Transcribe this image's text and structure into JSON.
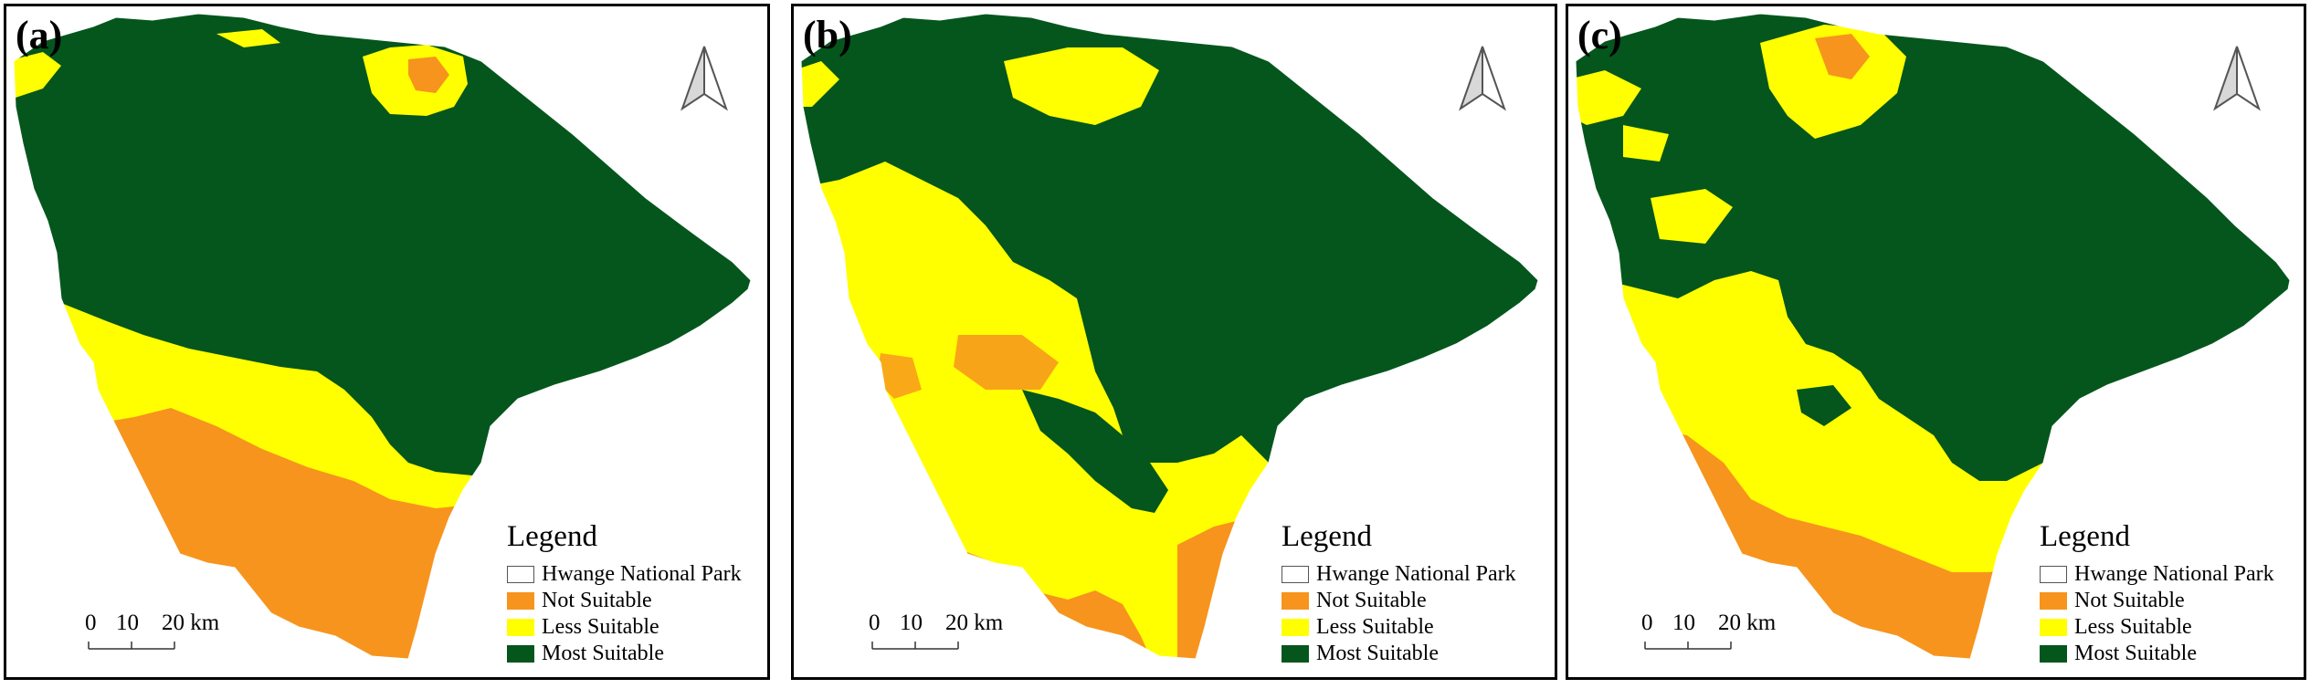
{
  "panels": [
    {
      "id": "a",
      "label": "(a)"
    },
    {
      "id": "b",
      "label": "(b)"
    },
    {
      "id": "c",
      "label": "(c)"
    }
  ],
  "legend": {
    "title": "Legend",
    "items": [
      {
        "label": "Hwange National Park",
        "color": "#ffffff"
      },
      {
        "label": "Not Suitable",
        "color": "#f7941d"
      },
      {
        "label": "Less Suitable",
        "color": "#ffff00"
      },
      {
        "label": "Most Suitable",
        "color": "#04561d"
      }
    ]
  },
  "scale": {
    "labels": [
      "0",
      "10",
      "20 km"
    ]
  },
  "icons": {
    "north_arrow": "north-arrow-icon"
  }
}
